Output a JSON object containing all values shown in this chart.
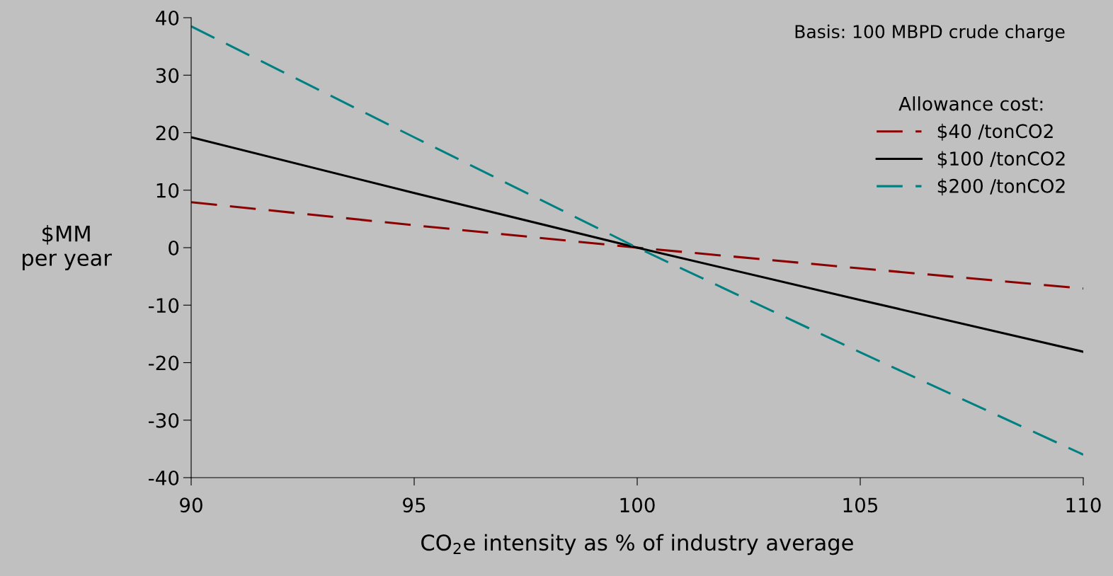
{
  "chart_data": {
    "type": "line",
    "xlabel": "CO$_{2}$e intensity as % of industry average",
    "ylabel": "$MM\nper year",
    "legend_title": "Allowance cost:",
    "x": [
      90,
      95,
      100,
      105,
      110
    ],
    "series": [
      {
        "name": "$40 /tonCO2",
        "color": "#8b0000",
        "line_style": "dashed",
        "values": [
          7.9,
          3.9,
          0,
          -3.6,
          -7.1
        ]
      },
      {
        "name": "$100 /tonCO2",
        "color": "#000000",
        "line_style": "solid",
        "values": [
          19.2,
          9.5,
          0,
          -9.1,
          -18.1
        ]
      },
      {
        "name": "$200 /tonCO2",
        "color": "#008080",
        "line_style": "dashed",
        "values": [
          38.5,
          19.2,
          0,
          -18.2,
          -36
        ]
      }
    ],
    "xlim": [
      90,
      110
    ],
    "xticks": [
      90,
      95,
      100,
      105,
      110
    ],
    "ylim": [
      -40,
      40
    ],
    "yticks": [
      -40,
      -30,
      -20,
      -10,
      0,
      10,
      20,
      30,
      40
    ],
    "annotations": [
      "Basis: 100 MBPD crude charge"
    ],
    "grid": false,
    "legend": "right",
    "marker": "none"
  }
}
